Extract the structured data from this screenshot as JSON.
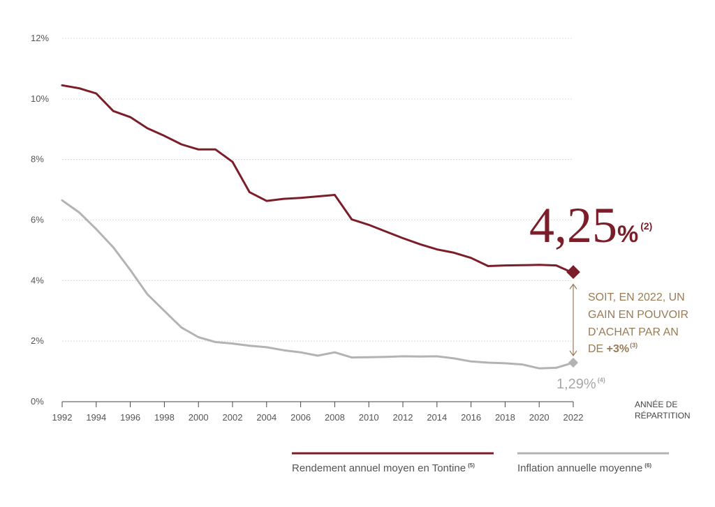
{
  "chart_data": {
    "type": "line",
    "xlabel": "ANNÉE DE RÉPARTITION",
    "xlabel_lines": [
      "ANNÉE DE",
      "RÉPARTITION"
    ],
    "ylabel": "",
    "xlim": [
      1992,
      2022
    ],
    "ylim": [
      0,
      12
    ],
    "x_ticks": [
      "1992",
      "1994",
      "1996",
      "1998",
      "2000",
      "2002",
      "2004",
      "2006",
      "2008",
      "2010",
      "2012",
      "2014",
      "2016",
      "2018",
      "2020",
      "2022"
    ],
    "y_ticks": [
      "0%",
      "2%",
      "4%",
      "6%",
      "8%",
      "10%",
      "12%"
    ],
    "grid": true,
    "legend_placement": "bottom",
    "series": [
      {
        "name": "Rendement annuel moyen en Tontine",
        "note": "(5)",
        "color": "#7c1e29",
        "x": [
          1992,
          1993,
          1994,
          1995,
          1996,
          1997,
          1998,
          1999,
          2000,
          2001,
          2002,
          2003,
          2004,
          2005,
          2006,
          2007,
          2008,
          2009,
          2010,
          2011,
          2012,
          2013,
          2014,
          2015,
          2016,
          2017,
          2018,
          2019,
          2020,
          2021,
          2022
        ],
        "values": [
          10.45,
          10.35,
          10.18,
          9.6,
          9.4,
          9.03,
          8.78,
          8.5,
          8.33,
          8.33,
          7.92,
          6.92,
          6.63,
          6.7,
          6.73,
          6.78,
          6.83,
          6.02,
          5.84,
          5.62,
          5.4,
          5.2,
          5.03,
          4.92,
          4.75,
          4.48,
          4.5,
          4.51,
          4.52,
          4.5,
          4.25
        ]
      },
      {
        "name": "Inflation annuelle moyenne",
        "note": "(6)",
        "color": "#b3b3b3",
        "x": [
          1992,
          1993,
          1994,
          1995,
          1996,
          1997,
          1998,
          1999,
          2000,
          2001,
          2002,
          2003,
          2004,
          2005,
          2006,
          2007,
          2008,
          2009,
          2010,
          2011,
          2012,
          2013,
          2014,
          2015,
          2016,
          2017,
          2018,
          2019,
          2020,
          2021,
          2022
        ],
        "values": [
          6.65,
          6.25,
          5.7,
          5.1,
          4.35,
          3.55,
          3.0,
          2.45,
          2.13,
          1.97,
          1.92,
          1.85,
          1.8,
          1.7,
          1.63,
          1.52,
          1.63,
          1.46,
          1.47,
          1.48,
          1.5,
          1.49,
          1.5,
          1.43,
          1.33,
          1.29,
          1.27,
          1.23,
          1.1,
          1.12,
          1.29
        ]
      }
    ],
    "annotations": {
      "tontine_value": "4,25",
      "tontine_pct": "%",
      "tontine_note": "(2)",
      "inflation_value": "1,29%",
      "inflation_note": "(4)",
      "gain_lines": [
        "SOIT, EN 2022, UN",
        "GAIN EN POUVOIR",
        "D’ACHAT PAR AN"
      ],
      "gain_last_prefix": "DE ",
      "gain_value": "+3%",
      "gain_note": "(3)"
    }
  },
  "colors": {
    "tontine": "#7c1e29",
    "inflation": "#b3b3b3",
    "gain_text": "#9a7b55",
    "grid": "#cfcfcf",
    "axis": "#444444"
  }
}
